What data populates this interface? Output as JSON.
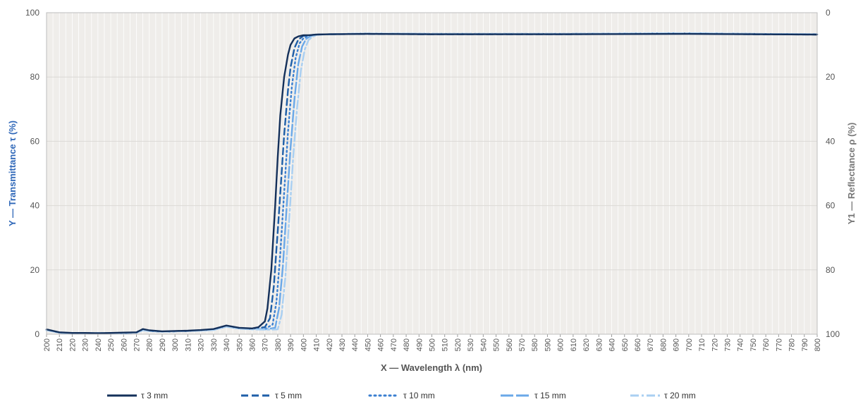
{
  "chart_data": {
    "type": "line",
    "xlabel": "X — Wavelength λ  (nm)",
    "ylabel": "Y — Transmittance  τ  (%)",
    "y2label": "Y1 — Reflectance  ρ  (%)",
    "xlim": [
      200,
      800
    ],
    "ylim": [
      0,
      100
    ],
    "y2lim_reversed": [
      0,
      100
    ],
    "xticks": [
      200,
      210,
      220,
      230,
      240,
      250,
      260,
      270,
      280,
      290,
      300,
      310,
      320,
      330,
      340,
      350,
      360,
      370,
      380,
      390,
      400,
      410,
      420,
      430,
      440,
      450,
      460,
      470,
      480,
      490,
      500,
      510,
      520,
      530,
      540,
      550,
      560,
      570,
      580,
      590,
      600,
      610,
      620,
      630,
      640,
      650,
      660,
      670,
      680,
      690,
      700,
      710,
      720,
      730,
      740,
      750,
      760,
      770,
      780,
      790,
      800
    ],
    "yticks": [
      0,
      20,
      40,
      60,
      80,
      100
    ],
    "y2ticks": [
      100,
      80,
      60,
      40,
      20,
      0
    ],
    "grid": true,
    "legend_position": "bottom",
    "series": [
      {
        "name": "τ  3 mm",
        "color": "#14305a",
        "dash": "solid",
        "x": [
          200,
          210,
          220,
          230,
          240,
          250,
          260,
          270,
          275,
          280,
          290,
          300,
          310,
          320,
          330,
          340,
          350,
          360,
          365,
          370,
          372,
          375,
          378,
          380,
          382,
          385,
          388,
          390,
          393,
          396,
          400,
          405,
          410,
          420,
          450,
          500,
          600,
          700,
          750,
          800
        ],
        "y": [
          1.5,
          0.6,
          0.4,
          0.4,
          0.3,
          0.4,
          0.5,
          0.6,
          1.6,
          1.2,
          0.9,
          1.0,
          1.1,
          1.3,
          1.6,
          2.7,
          2.0,
          1.8,
          2.2,
          4,
          8,
          20,
          40,
          55,
          68,
          80,
          87,
          90,
          92,
          92.6,
          93,
          93,
          93.2,
          93.3,
          93.4,
          93.3,
          93.3,
          93.4,
          93.3,
          93.2
        ]
      },
      {
        "name": "τ  5 mm",
        "color": "#1f5fa8",
        "dash": "dashed",
        "x": [
          200,
          210,
          220,
          230,
          240,
          250,
          260,
          270,
          275,
          280,
          290,
          300,
          310,
          320,
          330,
          340,
          350,
          360,
          370,
          374,
          377,
          380,
          383,
          385,
          388,
          390,
          393,
          396,
          400,
          405,
          410,
          420,
          450,
          500,
          600,
          700,
          750,
          800
        ],
        "y": [
          1.4,
          0.5,
          0.3,
          0.3,
          0.3,
          0.3,
          0.4,
          0.5,
          1.4,
          1.1,
          0.8,
          0.9,
          1.0,
          1.2,
          1.5,
          2.5,
          1.9,
          1.7,
          2.2,
          5,
          15,
          32,
          50,
          62,
          76,
          83,
          89,
          91.6,
          92.8,
          93,
          93.2,
          93.3,
          93.4,
          93.3,
          93.3,
          93.5,
          93.3,
          93.2
        ]
      },
      {
        "name": "τ  10 mm",
        "color": "#3a7fd0",
        "dash": "dotted",
        "x": [
          200,
          210,
          220,
          230,
          240,
          250,
          260,
          270,
          275,
          280,
          290,
          300,
          310,
          320,
          330,
          340,
          350,
          360,
          370,
          376,
          379,
          382,
          385,
          388,
          391,
          394,
          397,
          400,
          403,
          406,
          410,
          420,
          450,
          500,
          600,
          700,
          750,
          800
        ],
        "y": [
          1.3,
          0.5,
          0.3,
          0.3,
          0.3,
          0.3,
          0.4,
          0.5,
          1.3,
          1.0,
          0.8,
          0.9,
          1.0,
          1.2,
          1.4,
          2.4,
          1.8,
          1.6,
          1.6,
          3,
          10,
          25,
          44,
          63,
          77,
          86,
          90.5,
          92,
          92.7,
          93,
          93.2,
          93.3,
          93.5,
          93.4,
          93.4,
          93.6,
          93.4,
          93.3
        ]
      },
      {
        "name": "τ  15 mm",
        "color": "#6aa8e8",
        "dash": "longdash",
        "x": [
          200,
          210,
          220,
          230,
          240,
          250,
          260,
          270,
          275,
          280,
          290,
          300,
          310,
          320,
          330,
          340,
          350,
          360,
          370,
          378,
          381,
          384,
          387,
          390,
          393,
          396,
          399,
          402,
          405,
          408,
          412,
          420,
          450,
          500,
          600,
          700,
          750,
          800
        ],
        "y": [
          1.3,
          0.5,
          0.3,
          0.3,
          0.3,
          0.3,
          0.4,
          0.5,
          1.3,
          1.0,
          0.8,
          0.9,
          1.0,
          1.2,
          1.4,
          2.4,
          1.8,
          1.6,
          1.5,
          2,
          8,
          21,
          40,
          58,
          73,
          84,
          89.5,
          91.8,
          92.6,
          93,
          93.2,
          93.3,
          93.5,
          93.4,
          93.4,
          93.6,
          93.4,
          93.3
        ]
      },
      {
        "name": "τ  20 mm",
        "color": "#a9cff2",
        "dash": "dashdot",
        "x": [
          200,
          210,
          220,
          230,
          240,
          250,
          260,
          270,
          275,
          280,
          290,
          300,
          310,
          320,
          330,
          340,
          350,
          360,
          370,
          380,
          383,
          386,
          389,
          392,
          395,
          398,
          401,
          404,
          407,
          410,
          414,
          420,
          450,
          500,
          600,
          700,
          750,
          800
        ],
        "y": [
          1.2,
          0.5,
          0.3,
          0.3,
          0.3,
          0.3,
          0.4,
          0.5,
          1.2,
          1.0,
          0.8,
          0.9,
          1.0,
          1.1,
          1.3,
          2.3,
          1.7,
          1.5,
          1.4,
          1.5,
          6,
          18,
          36,
          55,
          70,
          82,
          88.5,
          91.5,
          92.5,
          93,
          93.2,
          93.3,
          93.5,
          93.4,
          93.4,
          93.6,
          93.4,
          93.3
        ]
      }
    ]
  },
  "legend": {
    "items": [
      {
        "label": "τ  3 mm"
      },
      {
        "label": "τ  5 mm"
      },
      {
        "label": "τ  10 mm"
      },
      {
        "label": "τ  15 mm"
      },
      {
        "label": "τ  20 mm"
      }
    ]
  },
  "colors": {
    "plot_background": "#efedea",
    "grid": "#ffffff",
    "left_axis_title": "#2e67b8",
    "right_axis_title": "#777777"
  }
}
